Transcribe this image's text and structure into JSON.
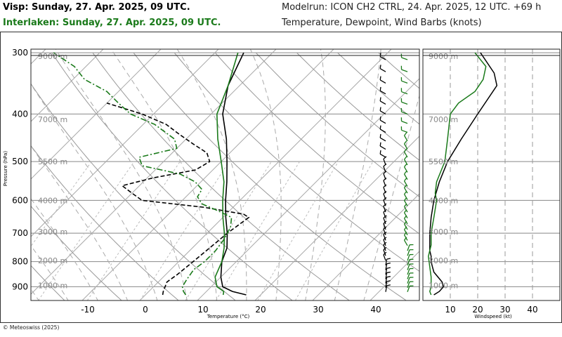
{
  "header": {
    "visp_title": "Visp: Sunday, 27. Apr. 2025, 09 UTC.",
    "interlaken_title": "Interlaken: Sunday, 27. Apr. 2025, 09 UTC.",
    "modelrun": "Modelrun: ICON CH2 CTRL, 24. Apr. 2025, 12 UTC. +69 h",
    "subtitle": "Temperature, Dewpoint, Wind Barbs (knots)"
  },
  "copyright": "© Meteoswiss (2025)",
  "colors": {
    "visp": "#000000",
    "interlaken": "#1a7a1a",
    "grid": "#999999"
  },
  "chart_data": [
    {
      "type": "line",
      "xlabel": "Temperature (°C)",
      "ylabel": "Pressure (hPa)",
      "xlim": [
        -20,
        45
      ],
      "ylim": [
        960,
        295
      ],
      "y_log": true,
      "x_ticks": [
        "-10",
        "0",
        "10",
        "20",
        "30",
        "40"
      ],
      "y_ticks": [
        "300",
        "400",
        "500",
        "600",
        "700",
        "800",
        "900"
      ],
      "altitude_labels": [
        "9000 m",
        "7000 m",
        "5500 m",
        "4000 m",
        "3000 m",
        "2000 m",
        "1000 m"
      ],
      "grid": true,
      "series": [
        {
          "name": "Visp",
          "color": "#000000",
          "dash": "solid",
          "p": [
            935,
            920,
            900,
            860,
            800,
            750,
            700,
            650,
            600,
            550,
            500,
            450,
            400,
            350,
            300
          ],
          "values": [
            17.5,
            14.5,
            12,
            10,
            7.5,
            6,
            3.5,
            0.5,
            -2.5,
            -5.5,
            -9,
            -13,
            -18,
            -22,
            -25
          ]
        },
        {
          "name": "Visp",
          "color": "#000000",
          "dash": "dashed",
          "p": [
            935,
            920,
            900,
            880,
            850,
            800,
            750,
            700,
            650,
            640,
            620,
            600,
            580,
            560,
            540,
            520,
            500,
            480,
            460,
            440,
            420,
            400,
            380
          ],
          "values": [
            3,
            2.5,
            2,
            1.5,
            2,
            2.5,
            3,
            3.5,
            4.5,
            3,
            -5,
            -17,
            -20,
            -23,
            -19,
            -13,
            -12,
            -14,
            -18,
            -22,
            -26,
            -32,
            -40
          ]
        },
        {
          "name": "Interlaken",
          "color": "#1a7a1a",
          "dash": "solid",
          "p": [
            935,
            920,
            900,
            860,
            800,
            750,
            700,
            650,
            600,
            550,
            500,
            450,
            400,
            350,
            300
          ],
          "values": [
            13.5,
            13,
            11,
            9,
            7.5,
            5.5,
            3,
            0,
            -3,
            -6,
            -10,
            -14.5,
            -19,
            -22,
            -26
          ]
        },
        {
          "name": "Interlaken",
          "color": "#1a7a1a",
          "dash": "dashdot",
          "p": [
            935,
            920,
            900,
            870,
            830,
            800,
            760,
            720,
            680,
            650,
            630,
            610,
            590,
            570,
            550,
            530,
            510,
            490,
            470,
            450,
            420,
            400,
            380,
            360,
            340,
            320,
            300
          ],
          "values": [
            7,
            6,
            5,
            4.5,
            4,
            4.5,
            4.5,
            4,
            3,
            1.5,
            -2,
            -6,
            -8,
            -8.5,
            -11,
            -15,
            -23,
            -25,
            -20,
            -22,
            -28,
            -34,
            -38,
            -42,
            -48,
            -52,
            -58
          ]
        }
      ]
    },
    {
      "type": "line",
      "xlabel": "Windspeed (kt)",
      "xlim": [
        0,
        50
      ],
      "ylim": [
        960,
        295
      ],
      "x_ticks": [
        "10",
        "20",
        "30",
        "40"
      ],
      "series": [
        {
          "name": "Visp",
          "color": "#000000",
          "p": [
            935,
            920,
            900,
            880,
            860,
            840,
            820,
            800,
            780,
            760,
            740,
            700,
            650,
            600,
            550,
            500,
            450,
            400,
            350,
            330,
            300
          ],
          "values": [
            4,
            6,
            7.5,
            7,
            5.5,
            4,
            3.5,
            3,
            3,
            2.5,
            2.5,
            2.5,
            3,
            4,
            6,
            9,
            14,
            20,
            27,
            26,
            21
          ]
        },
        {
          "name": "Interlaken",
          "color": "#1a7a1a",
          "p": [
            935,
            920,
            900,
            860,
            820,
            780,
            740,
            700,
            650,
            600,
            580,
            550,
            500,
            450,
            400,
            380,
            360,
            340,
            320,
            300
          ],
          "values": [
            3,
            2.5,
            3,
            3,
            2.5,
            2,
            3,
            3,
            4,
            5,
            4.5,
            5,
            8,
            9,
            10,
            13,
            19,
            22,
            23,
            19
          ]
        }
      ]
    }
  ]
}
